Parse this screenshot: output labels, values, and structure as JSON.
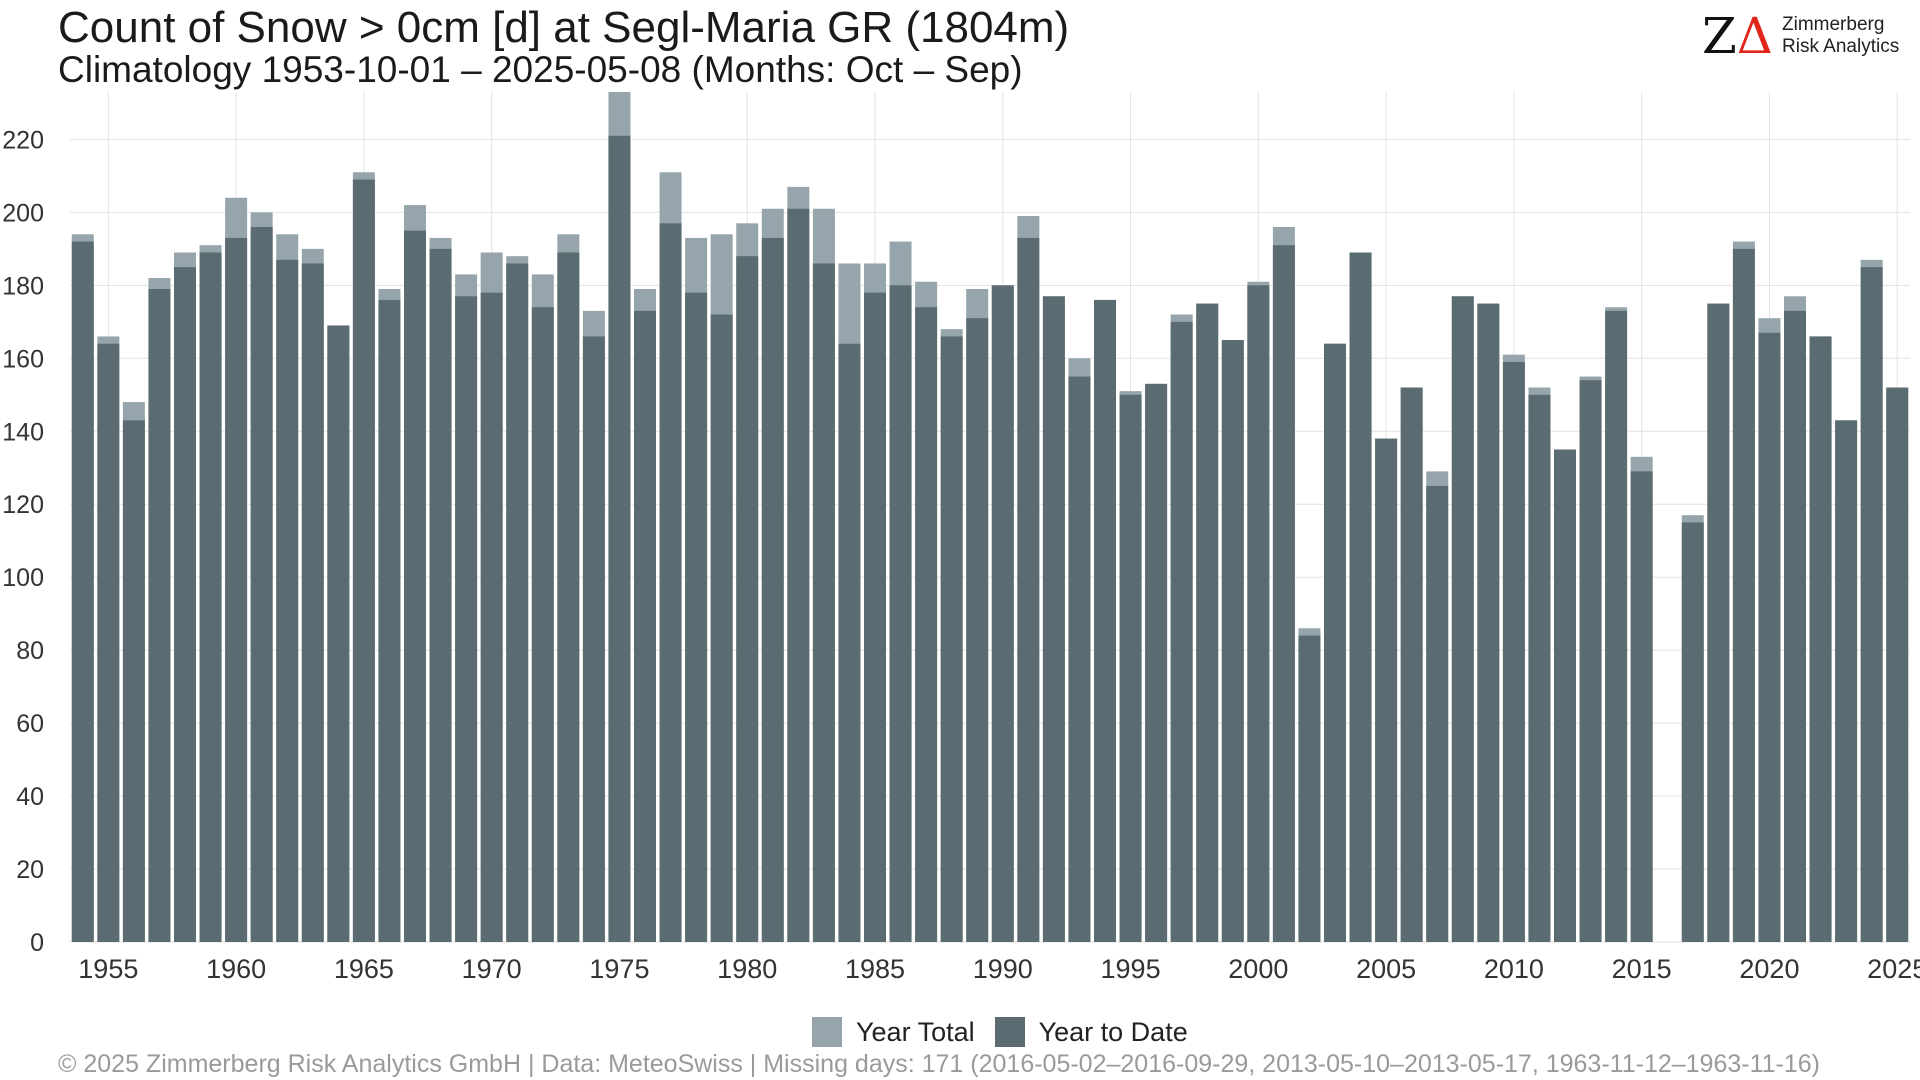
{
  "logo": {
    "mark": "ZΔ",
    "line1": "Zimmerberg",
    "line2": "Risk Analytics"
  },
  "legend": [
    {
      "label": "Year Total",
      "color": "#95a5ab"
    },
    {
      "label": "Year to Date",
      "color": "#5a6b71"
    }
  ],
  "footer": "©  2025 Zimmerberg Risk Analytics GmbH | Data: MeteoSwiss | Missing days: 171 (2016-05-02–2016-09-29, 2013-05-10–2013-05-17, 1963-11-12–1963-11-16)",
  "colors": {
    "year_total": "#95a5ab",
    "year_to_date": "#5a6b71",
    "grid": "#e2e2e2"
  },
  "chart_data": {
    "type": "bar",
    "title": "Count of Snow > 0cm [d] at Segl-Maria  GR (1804m)",
    "subtitle": "Climatology 1953-10-01 – 2025-05-08 (Months: Oct – Sep)",
    "xlabel": "",
    "ylabel": "",
    "ylim": [
      0,
      233
    ],
    "y_ticks": [
      0,
      20,
      40,
      60,
      80,
      100,
      120,
      140,
      160,
      180,
      200,
      220
    ],
    "x_ticks": [
      1955,
      1960,
      1965,
      1970,
      1975,
      1980,
      1985,
      1990,
      1995,
      2000,
      2005,
      2010,
      2015,
      2020,
      2025
    ],
    "x_range": [
      1953.5,
      2025.5
    ],
    "grid": true,
    "legend_position": "bottom",
    "overlay": true,
    "categories": [
      1954,
      1955,
      1956,
      1957,
      1958,
      1959,
      1960,
      1961,
      1962,
      1963,
      1964,
      1965,
      1966,
      1967,
      1968,
      1969,
      1970,
      1971,
      1972,
      1973,
      1974,
      1975,
      1976,
      1977,
      1978,
      1979,
      1980,
      1981,
      1982,
      1983,
      1984,
      1985,
      1986,
      1987,
      1988,
      1989,
      1990,
      1991,
      1992,
      1993,
      1994,
      1995,
      1996,
      1997,
      1998,
      1999,
      2000,
      2001,
      2002,
      2003,
      2004,
      2005,
      2006,
      2007,
      2008,
      2009,
      2010,
      2011,
      2012,
      2013,
      2014,
      2015,
      2016,
      2017,
      2018,
      2019,
      2020,
      2021,
      2022,
      2023,
      2024,
      2025
    ],
    "series": [
      {
        "name": "Year Total",
        "values": [
          194,
          166,
          148,
          182,
          189,
          191,
          204,
          200,
          194,
          190,
          169,
          211,
          179,
          202,
          193,
          183,
          189,
          188,
          183,
          194,
          173,
          233,
          179,
          211,
          193,
          194,
          197,
          201,
          207,
          201,
          186,
          186,
          192,
          181,
          168,
          179,
          180,
          199,
          177,
          160,
          176,
          151,
          153,
          172,
          175,
          165,
          181,
          196,
          86,
          164,
          189,
          138,
          152,
          129,
          177,
          175,
          161,
          152,
          135,
          155,
          174,
          133,
          null,
          117,
          175,
          192,
          171,
          177,
          166,
          143,
          187,
          152
        ]
      },
      {
        "name": "Year to Date",
        "values": [
          192,
          164,
          143,
          179,
          185,
          189,
          193,
          196,
          187,
          186,
          169,
          209,
          176,
          195,
          190,
          177,
          178,
          186,
          174,
          189,
          166,
          221,
          173,
          197,
          178,
          172,
          188,
          193,
          201,
          186,
          164,
          178,
          180,
          174,
          166,
          171,
          180,
          193,
          177,
          155,
          176,
          150,
          153,
          170,
          175,
          165,
          180,
          191,
          84,
          164,
          189,
          138,
          152,
          125,
          177,
          175,
          159,
          150,
          135,
          154,
          173,
          129,
          null,
          115,
          175,
          190,
          167,
          173,
          166,
          143,
          185,
          152
        ]
      }
    ]
  }
}
